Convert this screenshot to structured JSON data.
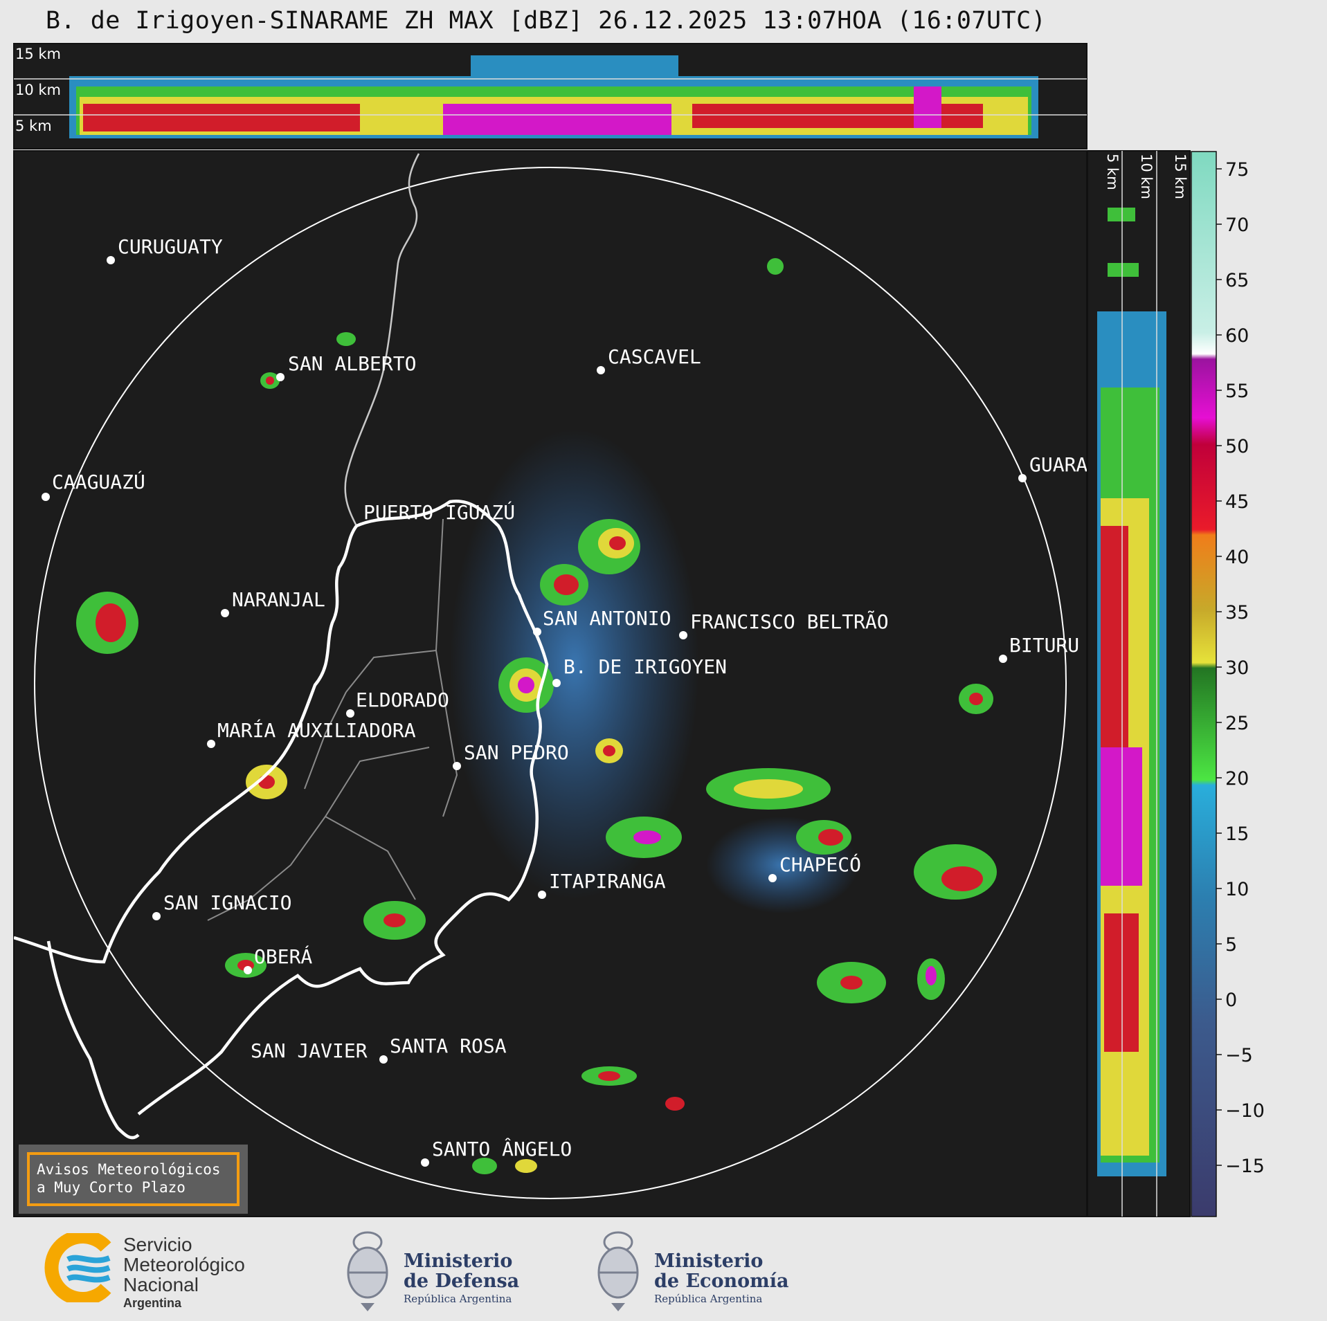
{
  "title": "B. de Irigoyen-SINARAME ZH MAX [dBZ] 26.12.2025 13:07HOA (16:07UTC)",
  "top_profile": {
    "height_labels": [
      "15 km",
      "10 km",
      "5 km"
    ]
  },
  "side_profile": {
    "height_labels": [
      "5 km",
      "10 km",
      "15 km"
    ]
  },
  "colorbar": {
    "ticks": [
      "75",
      "70",
      "65",
      "60",
      "55",
      "50",
      "45",
      "40",
      "35",
      "30",
      "25",
      "20",
      "15",
      "10",
      "5",
      "0",
      "−5",
      "−10",
      "−15"
    ]
  },
  "cities": [
    {
      "name": "CURUGUATY"
    },
    {
      "name": "SAN ALBERTO"
    },
    {
      "name": "CASCAVEL"
    },
    {
      "name": "CAAGUAZÚ"
    },
    {
      "name": "GUARA"
    },
    {
      "name": "PUERTO IGUAZÚ"
    },
    {
      "name": "NARANJAL"
    },
    {
      "name": "SAN ANTONIO"
    },
    {
      "name": "FRANCISCO BELTRÃO"
    },
    {
      "name": "BITURU"
    },
    {
      "name": "B. DE IRIGOYEN"
    },
    {
      "name": "ELDORADO"
    },
    {
      "name": "MARÍA AUXILIADORA"
    },
    {
      "name": "SAN PEDRO"
    },
    {
      "name": "CHAPECÓ"
    },
    {
      "name": "ITAPIRANGA"
    },
    {
      "name": "SAN IGNACIO"
    },
    {
      "name": "OBERÁ"
    },
    {
      "name": "SAN JAVIER"
    },
    {
      "name": "SANTA ROSA"
    },
    {
      "name": "SANTO ÂNGELO"
    }
  ],
  "notice": {
    "line1": "Avisos Meteorológicos",
    "line2": "a Muy Corto Plazo"
  },
  "logos": {
    "smn": {
      "line1": "Servicio",
      "line2": "Meteorológico",
      "line3": "Nacional",
      "sub": "Argentina"
    },
    "defensa": {
      "line1": "Ministerio",
      "line2": "de Defensa",
      "sub": "República Argentina"
    },
    "economia": {
      "line1": "Ministerio",
      "line2": "de Economía",
      "sub": "República Argentina"
    }
  },
  "colors": {
    "panel": "#1c1c1c",
    "range_ring": "#ffffff",
    "border": "#ffffff",
    "accent": "#f39c12"
  }
}
